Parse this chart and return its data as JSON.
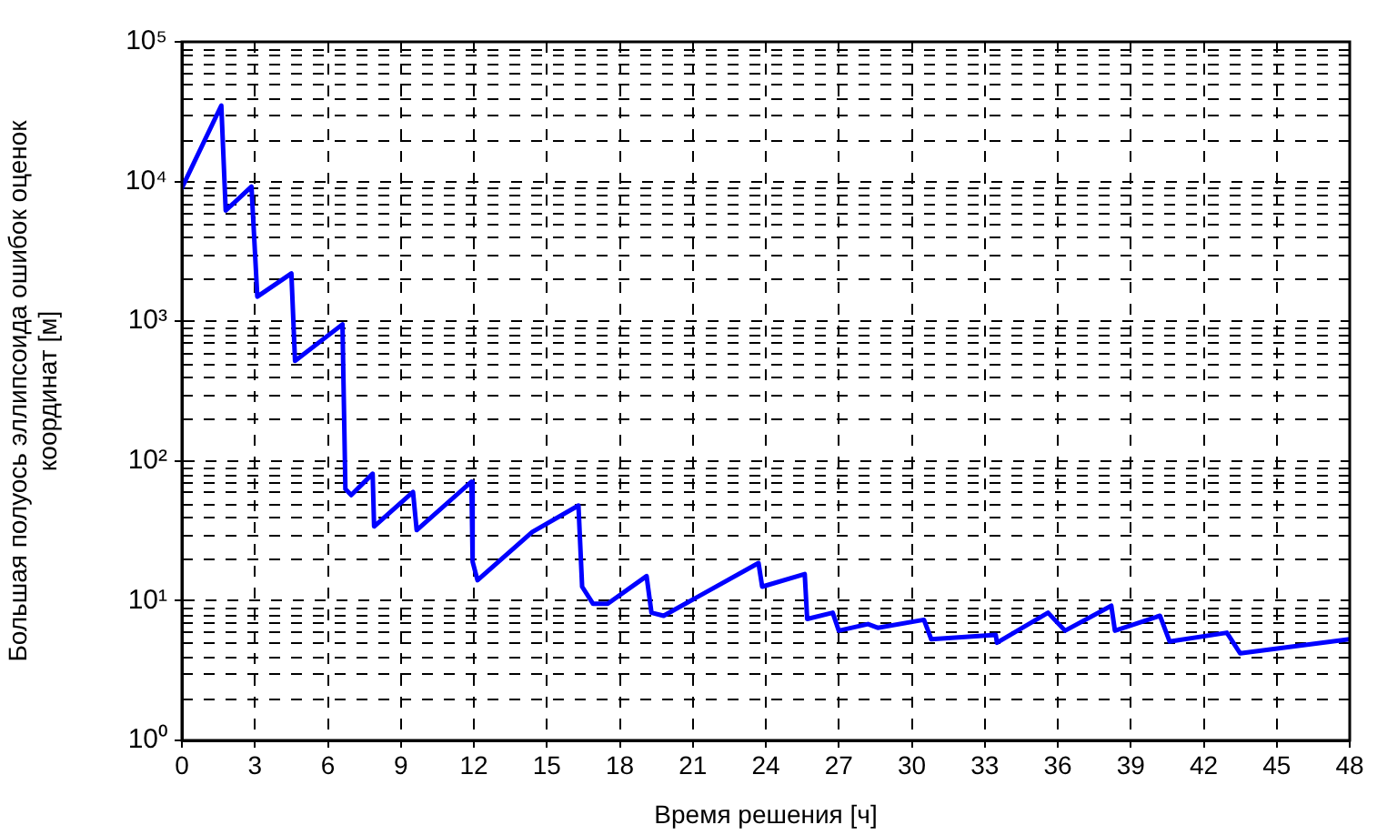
{
  "chart_data": {
    "type": "line",
    "xlabel": "Время решения [ч]",
    "ylabel": "Большая полуось эллипсоида ошибок оценок координат [м]",
    "log": "y",
    "grid": true,
    "legend": false,
    "marker": "none",
    "line_style": "solid",
    "xlim": [
      0,
      48
    ],
    "xticks": [
      0,
      3,
      6,
      9,
      12,
      15,
      18,
      21,
      24,
      27,
      30,
      33,
      36,
      39,
      42,
      45,
      48
    ],
    "ylim": [
      1,
      100000
    ],
    "yticks": [
      {
        "value": 1,
        "label": "10⁰"
      },
      {
        "value": 10,
        "label": "10¹"
      },
      {
        "value": 100,
        "label": "10²"
      },
      {
        "value": 1000,
        "label": "10³"
      },
      {
        "value": 10000,
        "label": "10⁴"
      },
      {
        "value": 100000,
        "label": "10⁵"
      }
    ],
    "series": [
      {
        "color": "#0000ff",
        "x": [
          0,
          1.62,
          1.8,
          2.86,
          3.1,
          4.5,
          4.65,
          6.6,
          6.72,
          6.96,
          7.84,
          7.9,
          9.5,
          9.65,
          11.9,
          11.95,
          12.15,
          14.4,
          16.3,
          16.45,
          16.9,
          17.5,
          19.1,
          19.3,
          19.8,
          23.7,
          23.85,
          25.6,
          25.7,
          26.75,
          27,
          28.2,
          28.6,
          30.5,
          30.8,
          33.45,
          33.5,
          35.6,
          36.3,
          38.2,
          38.35,
          40.2,
          40.6,
          42.95,
          43.5,
          48
        ],
        "values": [
          9000,
          35000,
          6200,
          9200,
          1500,
          2200,
          520,
          950,
          63,
          57,
          81,
          34,
          60,
          32,
          71,
          19,
          14,
          31,
          48,
          12.6,
          9.5,
          9.5,
          15,
          8.2,
          7.8,
          18.6,
          12.6,
          15.5,
          7.4,
          8.2,
          6.1,
          6.8,
          6.4,
          7.3,
          5.3,
          5.7,
          5,
          8.2,
          6.1,
          9.2,
          6.1,
          7.8,
          5.1,
          5.9,
          4.2,
          5.3
        ]
      }
    ]
  }
}
